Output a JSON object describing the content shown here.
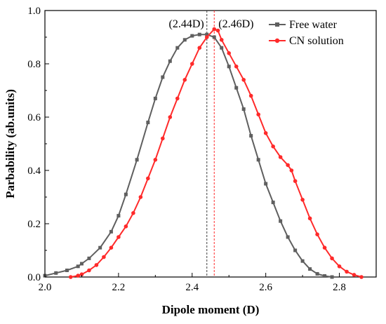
{
  "chart_data": {
    "type": "line",
    "xlabel": "Dipole moment (D)",
    "ylabel": "Parbability (ab.units)",
    "xlim": [
      2.0,
      2.9
    ],
    "ylim": [
      0.0,
      1.0
    ],
    "x_ticks": [
      2.0,
      2.2,
      2.4,
      2.6,
      2.8
    ],
    "x_tick_labels": [
      "2.0",
      "2.2",
      "2.4",
      "2.6",
      "2.8"
    ],
    "y_ticks": [
      0.0,
      0.2,
      0.4,
      0.6,
      0.8,
      1.0
    ],
    "y_tick_labels": [
      "0.0",
      "0.2",
      "0.4",
      "0.6",
      "0.8",
      "1.0"
    ],
    "grid": false,
    "legend_position": "top-right",
    "series": [
      {
        "name": "Free water",
        "color": "#5f5f5f",
        "marker": "square",
        "x": [
          2.0,
          2.03,
          2.06,
          2.09,
          2.1,
          2.12,
          2.15,
          2.18,
          2.2,
          2.22,
          2.25,
          2.28,
          2.3,
          2.32,
          2.34,
          2.36,
          2.38,
          2.4,
          2.42,
          2.44,
          2.46,
          2.48,
          2.5,
          2.52,
          2.54,
          2.56,
          2.58,
          2.6,
          2.62,
          2.64,
          2.66,
          2.68,
          2.7,
          2.72,
          2.74,
          2.76,
          2.78
        ],
        "y": [
          0.005,
          0.015,
          0.025,
          0.04,
          0.05,
          0.07,
          0.11,
          0.17,
          0.23,
          0.31,
          0.44,
          0.58,
          0.67,
          0.75,
          0.81,
          0.86,
          0.89,
          0.905,
          0.91,
          0.91,
          0.9,
          0.86,
          0.79,
          0.71,
          0.63,
          0.53,
          0.44,
          0.35,
          0.28,
          0.21,
          0.15,
          0.1,
          0.06,
          0.03,
          0.012,
          0.004,
          0.0
        ]
      },
      {
        "name": "CN solution",
        "color": "#ff2a2a",
        "marker": "circle",
        "x": [
          2.07,
          2.09,
          2.1,
          2.12,
          2.14,
          2.16,
          2.18,
          2.2,
          2.22,
          2.24,
          2.26,
          2.28,
          2.3,
          2.32,
          2.34,
          2.36,
          2.38,
          2.4,
          2.42,
          2.44,
          2.46,
          2.47,
          2.48,
          2.5,
          2.52,
          2.54,
          2.56,
          2.58,
          2.6,
          2.62,
          2.64,
          2.66,
          2.67,
          2.68,
          2.7,
          2.72,
          2.74,
          2.76,
          2.78,
          2.8,
          2.82,
          2.84,
          2.86
        ],
        "y": [
          0.0,
          0.005,
          0.01,
          0.025,
          0.045,
          0.075,
          0.11,
          0.15,
          0.19,
          0.24,
          0.3,
          0.37,
          0.44,
          0.52,
          0.6,
          0.67,
          0.74,
          0.8,
          0.86,
          0.9,
          0.93,
          0.925,
          0.89,
          0.84,
          0.79,
          0.74,
          0.68,
          0.61,
          0.54,
          0.49,
          0.45,
          0.42,
          0.4,
          0.36,
          0.29,
          0.22,
          0.16,
          0.11,
          0.07,
          0.04,
          0.02,
          0.008,
          0.0
        ]
      }
    ],
    "reference_lines": [
      {
        "x": 2.44,
        "label": "(2.44D)",
        "color": "#404040",
        "style": "dashed"
      },
      {
        "x": 2.46,
        "label": "(2.46D)",
        "color": "#ff2a2a",
        "style": "dashed"
      }
    ]
  }
}
